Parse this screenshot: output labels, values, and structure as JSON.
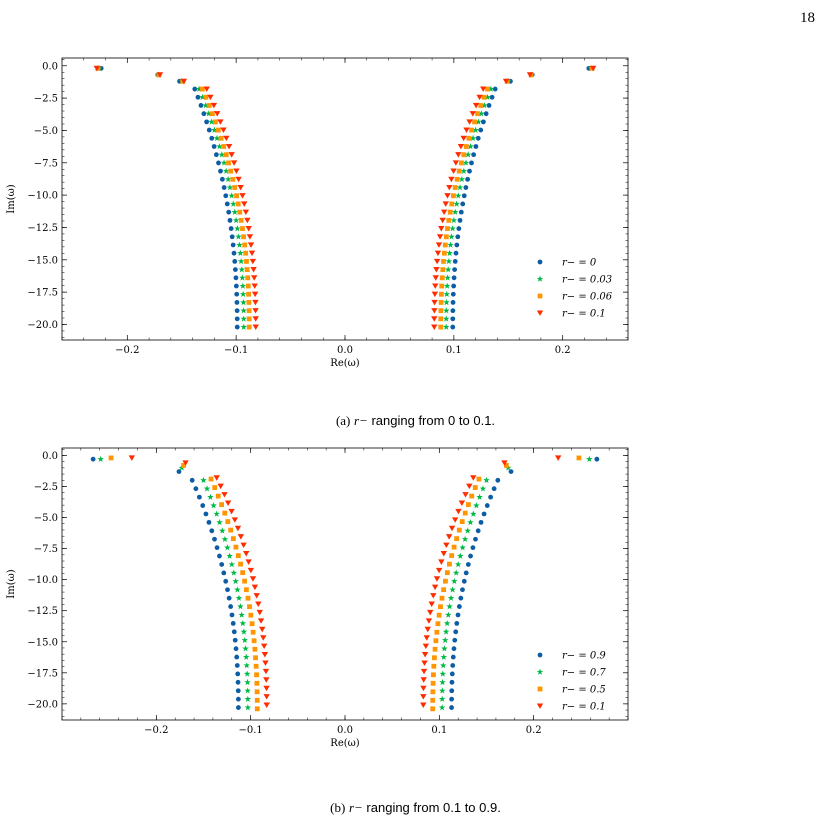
{
  "page_number": "18",
  "captions": [
    {
      "label": "(a)",
      "math": "r−",
      "text": "ranging from 0 to 0.1."
    },
    {
      "label": "(b)",
      "math": "r−",
      "text": "ranging from 0.1 to 0.9."
    }
  ],
  "chart_data": [
    {
      "type": "scatter",
      "xlabel": "Re(ω)",
      "ylabel": "Im(ω)",
      "xlim": [
        -0.26,
        0.26
      ],
      "ylim": [
        -21.2,
        0.6
      ],
      "xticks": [
        -0.2,
        -0.1,
        0.0,
        0.1,
        0.2
      ],
      "xtick_labels": [
        "−0.2",
        "−0.1",
        "0.0",
        "0.1",
        "0.2"
      ],
      "yticks": [
        0.0,
        -2.5,
        -5.0,
        -7.5,
        -10.0,
        -12.5,
        -15.0,
        -17.5,
        -20.0
      ],
      "ytick_labels": [
        "0.0",
        "−2.5",
        "−5.0",
        "−7.5",
        "−10.0",
        "−12.5",
        "−15.0",
        "−17.5",
        "−20.0"
      ],
      "legend_position": "lower-right",
      "series": [
        {
          "name": "r− = 0",
          "marker": "circle",
          "color": "#0c5da5",
          "extra_points": [
            {
              "x": 0.224,
              "y": -0.2
            },
            {
              "x": 0.172,
              "y": -0.7
            },
            {
              "x": 0.152,
              "y": -1.2
            }
          ],
          "branch": {
            "x_top": 0.138,
            "y_top": -1.8,
            "x_bottom": 0.099,
            "y_bottom": -20.2,
            "count": 30
          }
        },
        {
          "name": "r− = 0.03",
          "marker": "star",
          "color": "#00b945",
          "extra_points": [
            {
              "x": 0.226,
              "y": -0.2
            },
            {
              "x": 0.171,
              "y": -0.7
            },
            {
              "x": 0.15,
              "y": -1.2
            }
          ],
          "branch": {
            "x_top": 0.134,
            "y_top": -1.8,
            "x_bottom": 0.093,
            "y_bottom": -20.2,
            "count": 30
          }
        },
        {
          "name": "r− = 0.06",
          "marker": "square",
          "color": "#ff9500",
          "extra_points": [
            {
              "x": 0.227,
              "y": -0.2
            },
            {
              "x": 0.171,
              "y": -0.7
            },
            {
              "x": 0.149,
              "y": -1.2
            }
          ],
          "branch": {
            "x_top": 0.131,
            "y_top": -1.8,
            "x_bottom": 0.088,
            "y_bottom": -20.2,
            "count": 30
          }
        },
        {
          "name": "r− = 0.1",
          "marker": "triangle-down",
          "color": "#ff2c00",
          "extra_points": [
            {
              "x": 0.228,
              "y": -0.2
            },
            {
              "x": 0.17,
              "y": -0.7
            },
            {
              "x": 0.148,
              "y": -1.2
            }
          ],
          "branch": {
            "x_top": 0.127,
            "y_top": -1.8,
            "x_bottom": 0.082,
            "y_bottom": -20.2,
            "count": 30
          }
        }
      ]
    },
    {
      "type": "scatter",
      "xlabel": "Re(ω)",
      "ylabel": "Im(ω)",
      "xlim": [
        -0.3,
        0.3
      ],
      "ylim": [
        -21.3,
        0.6
      ],
      "xticks": [
        -0.2,
        -0.1,
        0.0,
        0.1,
        0.2
      ],
      "xtick_labels": [
        "−0.2",
        "−0.1",
        "0.0",
        "0.1",
        "0.2"
      ],
      "yticks": [
        0.0,
        -2.5,
        -5.0,
        -7.5,
        -10.0,
        -12.5,
        -15.0,
        -17.5,
        -20.0
      ],
      "ytick_labels": [
        "0.0",
        "−2.5",
        "−5.0",
        "−7.5",
        "−10.0",
        "−12.5",
        "−15.0",
        "−17.5",
        "−20.0"
      ],
      "legend_position": "lower-right",
      "series": [
        {
          "name": "r− = 0.9",
          "marker": "circle",
          "color": "#0c5da5",
          "extra_points": [
            {
              "x": 0.267,
              "y": -0.3
            },
            {
              "x": 0.176,
              "y": -1.3
            }
          ],
          "branch": {
            "x_top": 0.162,
            "y_top": -2.0,
            "x_bottom": 0.113,
            "y_bottom": -20.3,
            "count": 28
          }
        },
        {
          "name": "r− = 0.7",
          "marker": "star",
          "color": "#00b945",
          "extra_points": [
            {
              "x": 0.259,
              "y": -0.3
            },
            {
              "x": 0.173,
              "y": -1.0
            }
          ],
          "branch": {
            "x_top": 0.15,
            "y_top": -2.0,
            "x_bottom": 0.103,
            "y_bottom": -20.3,
            "count": 28
          }
        },
        {
          "name": "r− = 0.5",
          "marker": "square",
          "color": "#ff9500",
          "extra_points": [
            {
              "x": 0.248,
              "y": -0.2
            },
            {
              "x": 0.171,
              "y": -0.8
            }
          ],
          "branch": {
            "x_top": 0.142,
            "y_top": -1.9,
            "x_bottom": 0.093,
            "y_bottom": -20.4,
            "count": 28
          }
        },
        {
          "name": "r− = 0.1",
          "marker": "triangle-down",
          "color": "#ff2c00",
          "extra_points": [
            {
              "x": 0.226,
              "y": -0.2
            },
            {
              "x": 0.169,
              "y": -0.6
            }
          ],
          "branch": {
            "x_top": 0.136,
            "y_top": -1.8,
            "x_bottom": 0.083,
            "y_bottom": -20.1,
            "count": 28
          }
        }
      ]
    }
  ]
}
